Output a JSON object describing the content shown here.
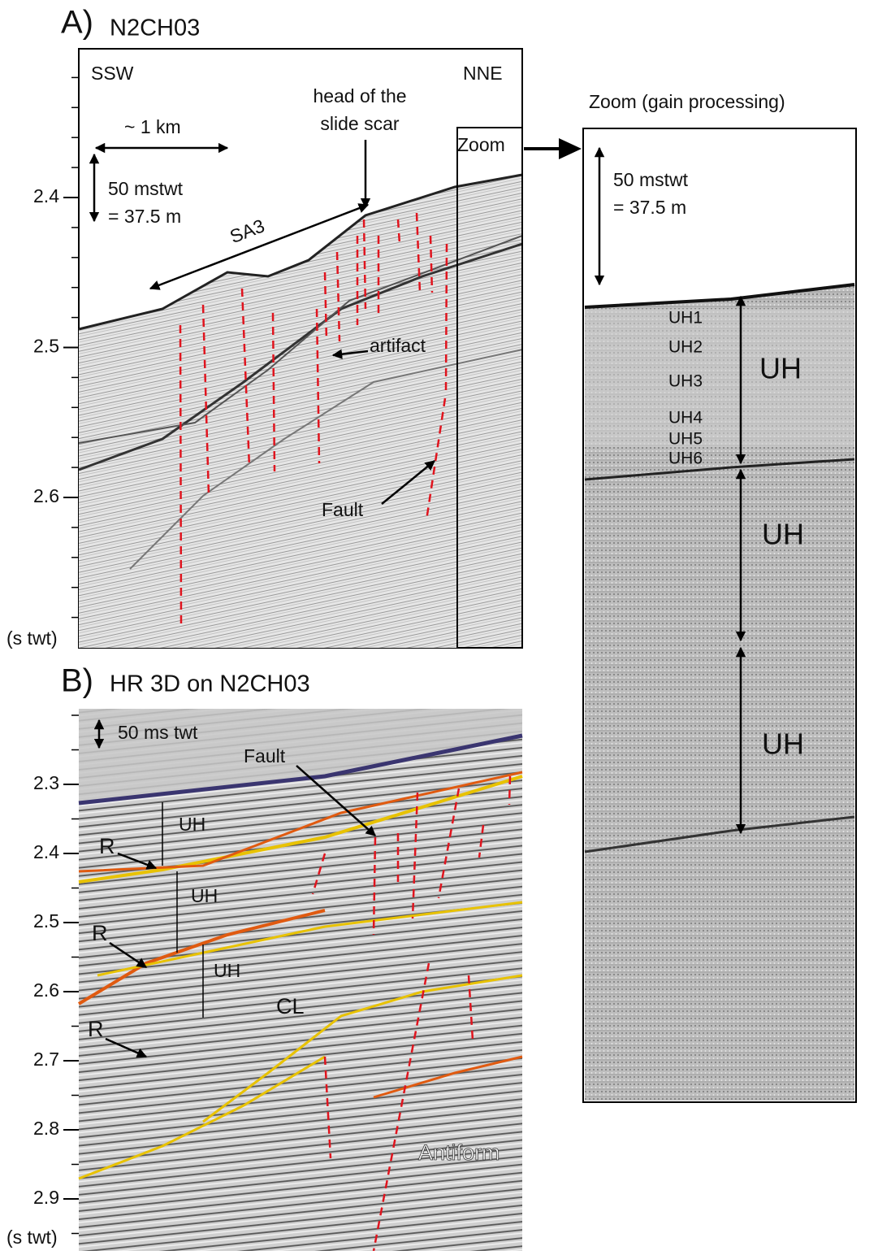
{
  "panel_a": {
    "label": "A)",
    "title": "N2CH03",
    "y_ticks": [
      "2.4",
      "2.5",
      "2.6"
    ],
    "y_unit": "(s twt)",
    "annotations": {
      "left_dir": "SSW",
      "right_dir": "NNE",
      "scale_h": "~ 1 km",
      "scale_v": [
        "50 mstwt",
        "= 37.5 m"
      ],
      "head": [
        "head of  the",
        "slide scar"
      ],
      "sa3": "SA3",
      "artifact": "artifact",
      "fault": "Fault",
      "zoom": "Zoom"
    }
  },
  "zoom": {
    "title": "Zoom  (gain processing)",
    "scale_v": [
      "50 mstwt",
      "= 37.5 m"
    ],
    "units": [
      "UH1",
      "UH2",
      "UH3",
      "UH4",
      "UH5",
      "UH6"
    ],
    "packages": [
      "UH",
      "UH",
      "UH"
    ]
  },
  "panel_b": {
    "label": "B)",
    "title": "HR 3D on N2CH03",
    "y_ticks": [
      "2.3",
      "2.4",
      "2.5",
      "2.6",
      "2.7",
      "2.8",
      "2.9"
    ],
    "y_unit": "(s twt)",
    "annotations": {
      "scale_v": "50 ms twt",
      "fault": "Fault",
      "uh": [
        "UH",
        "UH",
        "UH"
      ],
      "r": [
        "R",
        "R",
        "R"
      ],
      "cl": "CL",
      "antiform": "Antiform"
    }
  }
}
